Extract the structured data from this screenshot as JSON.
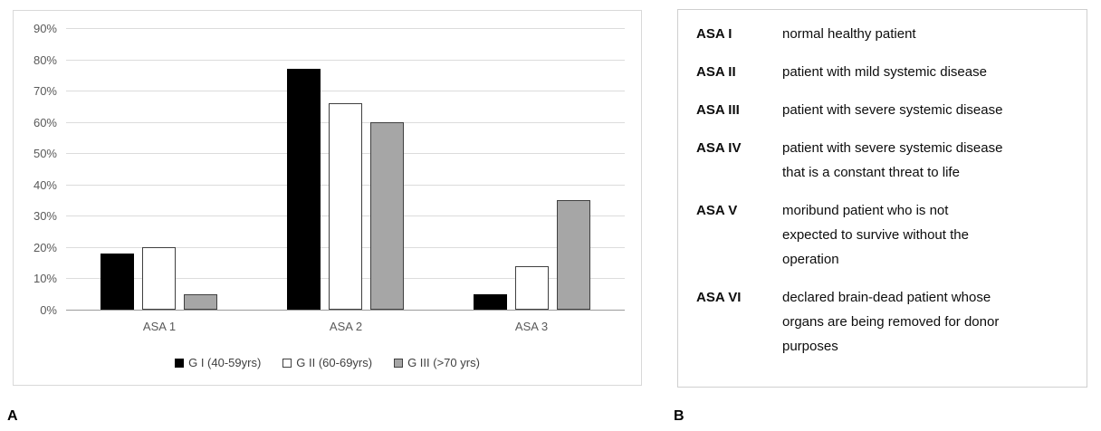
{
  "figure_labels": {
    "panel_a": "A",
    "panel_b": "B"
  },
  "chart_data": {
    "type": "bar",
    "title": "",
    "xlabel": "",
    "ylabel": "",
    "categories": [
      "ASA 1",
      "ASA 2",
      "ASA 3"
    ],
    "series": [
      {
        "name": "G I (40-59yrs)",
        "fill": "#000000",
        "border": "#000000",
        "values": [
          18,
          77,
          5
        ]
      },
      {
        "name": "G II (60-69yrs)",
        "fill": "#ffffff",
        "border": "#404040",
        "values": [
          20,
          66,
          14
        ]
      },
      {
        "name": "G III (>70 yrs)",
        "fill": "#a6a6a6",
        "border": "#404040",
        "values": [
          5,
          60,
          35
        ]
      }
    ],
    "ylim": [
      0,
      90
    ],
    "ytick_step": 10,
    "ytick_labels": [
      "0%",
      "10%",
      "20%",
      "30%",
      "40%",
      "50%",
      "60%",
      "70%",
      "80%",
      "90%"
    ],
    "grid": true,
    "gridline_color": "#dcdcdc",
    "legend_position": "bottom"
  },
  "asa_panel": {
    "rows": [
      {
        "term": "ASA I",
        "description": "normal healthy patient"
      },
      {
        "term": "ASA II",
        "description": "patient with mild systemic disease"
      },
      {
        "term": "ASA III",
        "description": "patient with severe systemic disease"
      },
      {
        "term": "ASA IV",
        "description": "patient with severe systemic disease\nthat is a constant threat to life"
      },
      {
        "term": "ASA V",
        "description": "moribund patient who is not\nexpected to survive without the\noperation"
      },
      {
        "term": "ASA VI",
        "description": "declared brain-dead patient whose\norgans are being removed for donor\npurposes"
      }
    ]
  }
}
